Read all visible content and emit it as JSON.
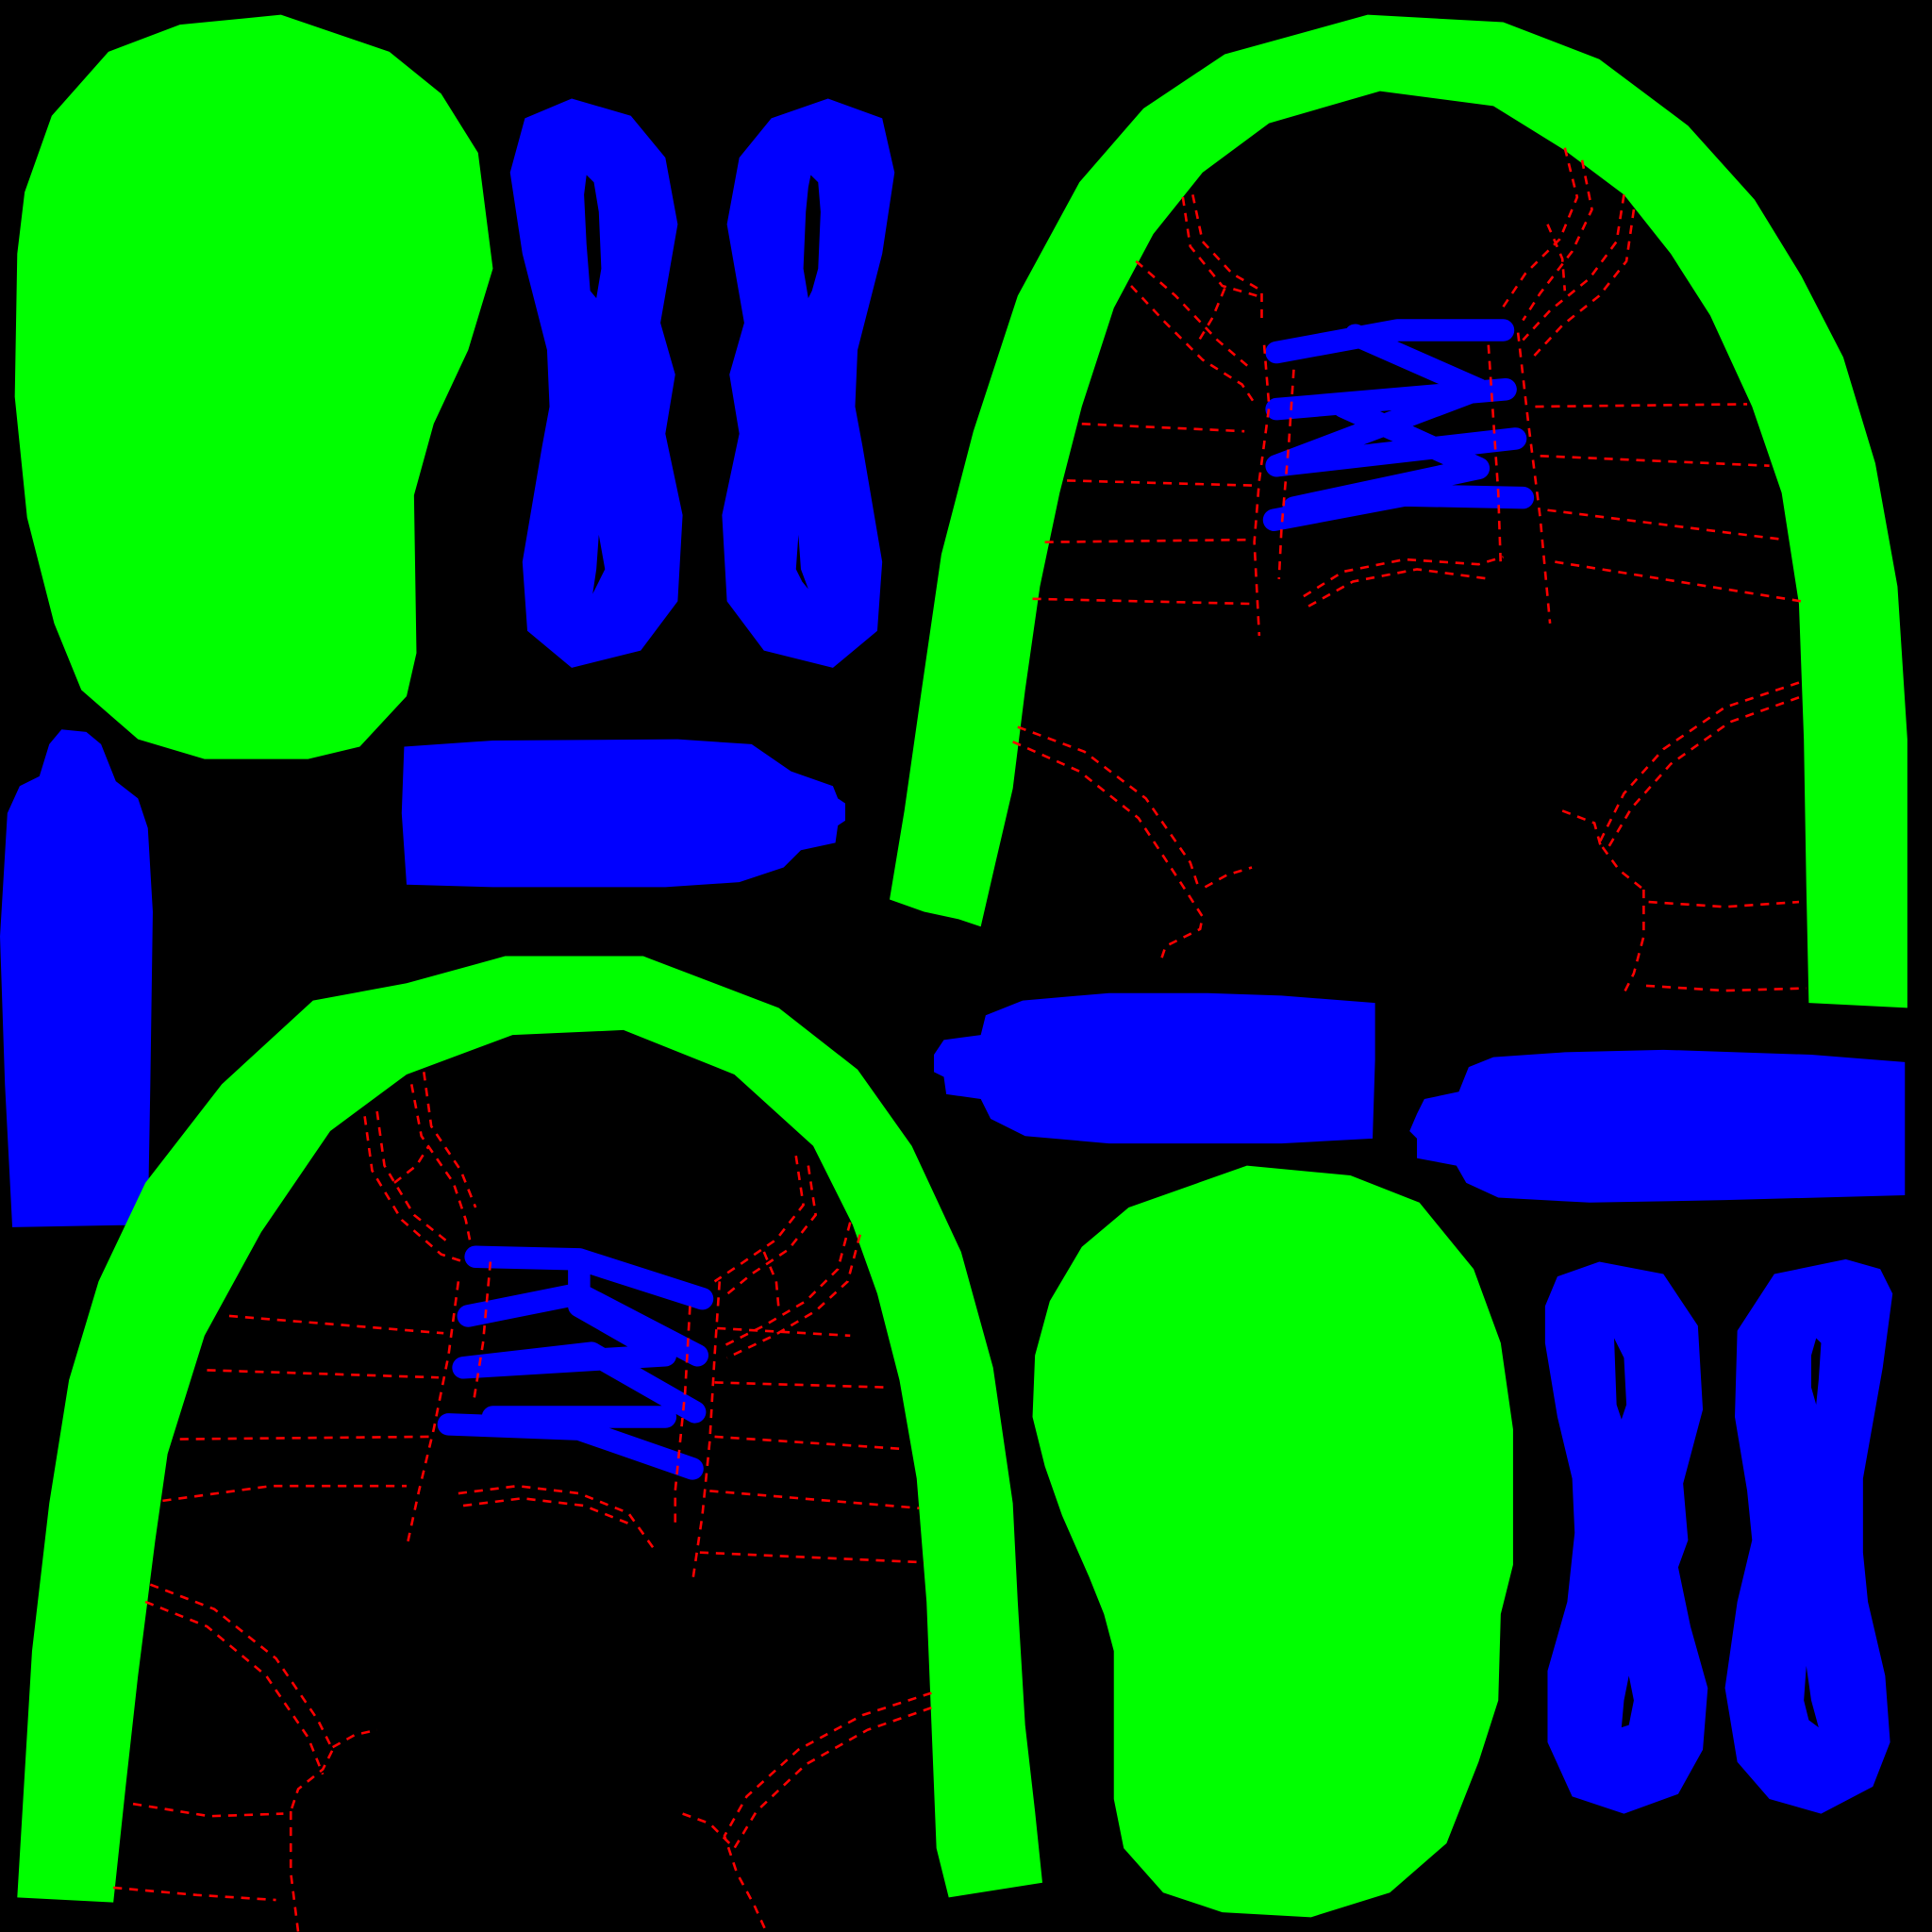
{
  "canvas": {
    "background": "#000000"
  },
  "colors": {
    "green": "#00ff00",
    "blue": "#0000ff",
    "stitch": "#ff0000"
  }
}
